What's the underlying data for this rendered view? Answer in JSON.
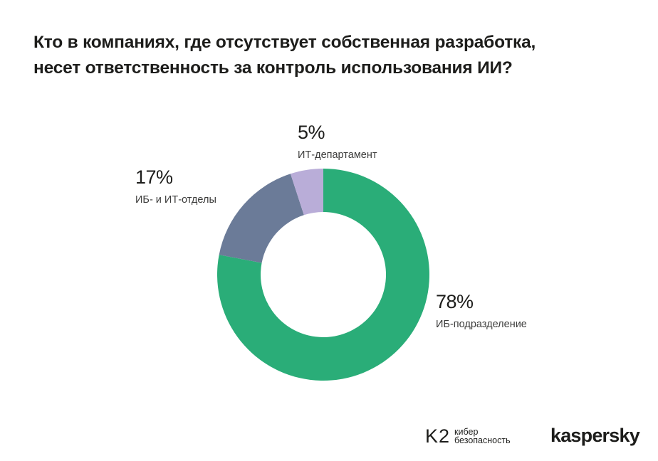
{
  "title_lines": [
    "Кто в компаниях, где отсутствует собственная разработка,",
    "несет ответственность за контроль использования ИИ?"
  ],
  "chart_data": {
    "type": "pie",
    "subtype": "donut",
    "title": "Кто в компаниях, где отсутствует собственная разработка, несет ответственность за контроль использования ИИ?",
    "unit": "%",
    "slices": [
      {
        "label": "ИБ-подразделение",
        "value": 78,
        "display": "78%",
        "color": "#2aad78"
      },
      {
        "label": "ИБ- и ИТ-отделы",
        "value": 17,
        "display": "17%",
        "color": "#6b7b98"
      },
      {
        "label": "ИТ-департамент",
        "value": 5,
        "display": "5%",
        "color": "#b9add8"
      }
    ],
    "start": "top",
    "direction": "clockwise",
    "legend": "none"
  },
  "footer": {
    "k2_mark": "K2",
    "k2_text_line1": "кибер",
    "k2_text_line2": "безопасность",
    "kaspersky": "kaspersky"
  }
}
